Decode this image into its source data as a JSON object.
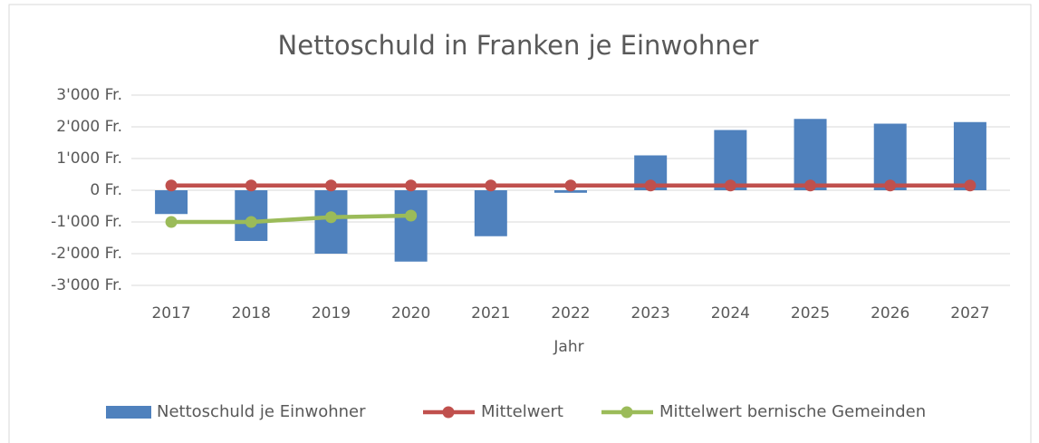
{
  "chart_data": {
    "type": "bar",
    "title": "Nettoschuld in Franken je Einwohner",
    "x_label": "Jahr",
    "categories": [
      "2017",
      "2018",
      "2019",
      "2020",
      "2021",
      "2022",
      "2023",
      "2024",
      "2025",
      "2026",
      "2027"
    ],
    "series": [
      {
        "name": "Nettoschuld je Einwohner",
        "type": "bar",
        "color": "#4f81bd",
        "values": [
          -750,
          -1600,
          -2000,
          -2250,
          -1450,
          -80,
          1100,
          1900,
          2250,
          2100,
          2150
        ]
      },
      {
        "name": "Mittelwert",
        "type": "line",
        "color": "#c0504d",
        "values": [
          150,
          150,
          150,
          150,
          150,
          150,
          150,
          150,
          150,
          150,
          150
        ]
      },
      {
        "name": "Mittelwert bernische Gemeinden",
        "type": "line",
        "color": "#9bbb59",
        "values": [
          -1000,
          -1000,
          -850,
          -800,
          null,
          null,
          null,
          null,
          null,
          null,
          null
        ]
      }
    ],
    "ylim": [
      -3000,
      3000
    ],
    "yticks": [
      {
        "value": 3000,
        "label": "3'000 Fr."
      },
      {
        "value": 2000,
        "label": "2'000 Fr."
      },
      {
        "value": 1000,
        "label": "1'000 Fr."
      },
      {
        "value": 0,
        "label": "0 Fr."
      },
      {
        "value": -1000,
        "label": "-1'000 Fr."
      },
      {
        "value": -2000,
        "label": "-2'000 Fr."
      },
      {
        "value": -3000,
        "label": "-3'000 Fr."
      }
    ],
    "grid": true,
    "legend": "bottom"
  }
}
